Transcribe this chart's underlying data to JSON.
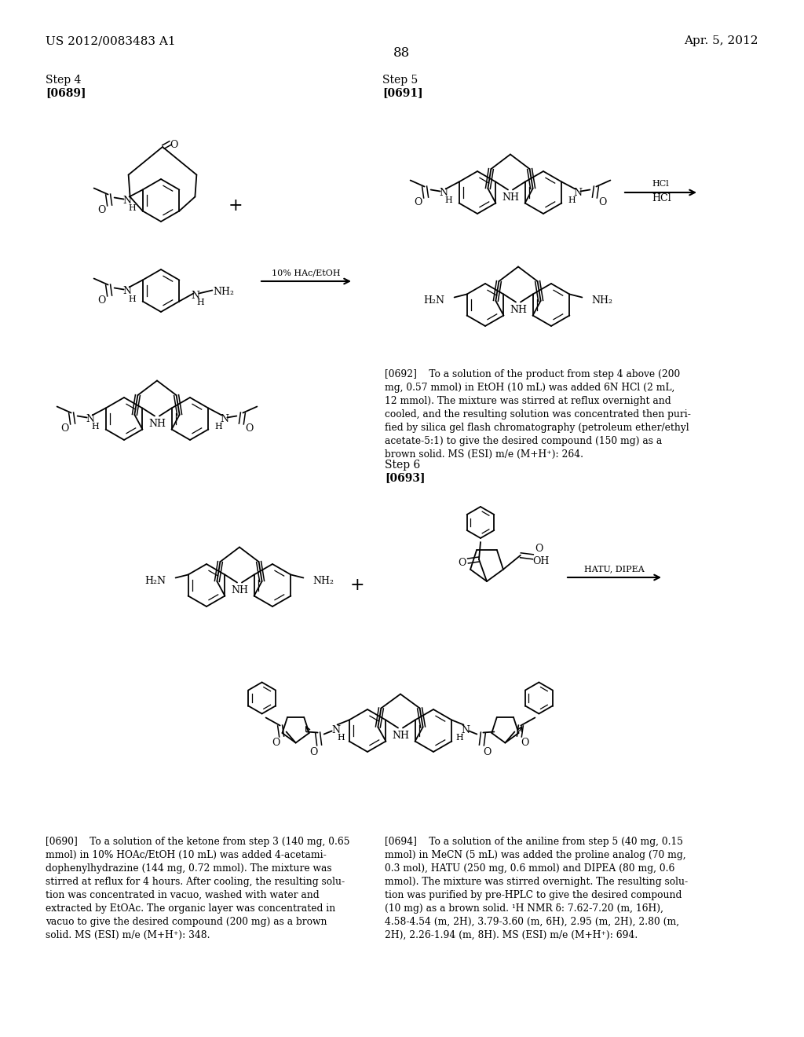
{
  "page_number": "88",
  "header_left": "US 2012/0083483 A1",
  "header_right": "Apr. 5, 2012",
  "step4_label": "Step 4",
  "step4_ref": "[0689]",
  "step5_label": "Step 5",
  "step5_ref": "[0691]",
  "step6_label": "Step 6",
  "step6_ref": "[0693]",
  "cond1": "10% HAc/EtOH",
  "cond2": "HCl",
  "cond3": "HATU, DIPEA",
  "para_0690": "[0690]    To a solution of the ketone from step 3 (140 mg, 0.65\nmmol) in 10% HOAc/EtOH (10 mL) was added 4-acetami-\ndophenylhydrazine (144 mg, 0.72 mmol). The mixture was\nstirred at reflux for 4 hours. After cooling, the resulting solu-\ntion was concentrated in vacuo, washed with water and\nextracted by EtOAc. The organic layer was concentrated in\nvacuo to give the desired compound (200 mg) as a brown\nsolid. MS (ESI) m/e (M+H⁺): 348.",
  "para_0692": "[0692]    To a solution of the product from step 4 above (200\nmg, 0.57 mmol) in EtOH (10 mL) was added 6N HCl (2 mL,\n12 mmol). The mixture was stirred at reflux overnight and\ncooled, and the resulting solution was concentrated then puri-\nfied by silica gel flash chromatography (petroleum ether/ethyl\nacetate-5:1) to give the desired compound (150 mg) as a\nbrown solid. MS (ESI) m/e (M+H⁺): 264.",
  "para_0694": "[0694]    To a solution of the aniline from step 5 (40 mg, 0.15\nmmol) in MeCN (5 mL) was added the proline analog (70 mg,\n0.3 mol), HATU (250 mg, 0.6 mmol) and DIPEA (80 mg, 0.6\nmmol). The mixture was stirred overnight. The resulting solu-\ntion was purified by pre-HPLC to give the desired compound\n(10 mg) as a brown solid. ¹H NMR δ: 7.62-7.20 (m, 16H),\n4.58-4.54 (m, 2H), 3.79-3.60 (m, 6H), 2.95 (m, 2H), 2.80 (m,\n2H), 2.26-1.94 (m, 8H). MS (ESI) m/e (M+H⁺): 694.",
  "bg": "#ffffff",
  "fc": "#000000"
}
